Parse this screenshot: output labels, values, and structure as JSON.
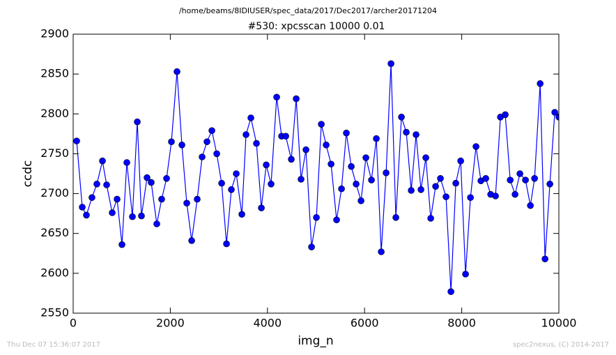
{
  "chart_data": {
    "type": "line",
    "suptitle": "/home/beams/8IDIUSER/spec_data/2017/Dec2017/archer20171204",
    "title": "#530: xpcsscan 10000 0.01",
    "x_label": "img_n",
    "y_label": "ccdc",
    "footer_left": "Thu Dec 07 15:36:07 2017",
    "footer_right": "spec2nexus, (C) 2014-2017",
    "x": [
      72,
      187,
      273,
      387,
      488,
      603,
      689,
      804,
      904,
      1005,
      1105,
      1220,
      1320,
      1406,
      1521,
      1607,
      1722,
      1822,
      1923,
      2023,
      2138,
      2239,
      2339,
      2440,
      2554,
      2655,
      2755,
      2856,
      2956,
      3057,
      3157,
      3257,
      3358,
      3473,
      3559,
      3659,
      3774,
      3875,
      3975,
      4075,
      4190,
      4291,
      4377,
      4491,
      4592,
      4692,
      4793,
      4908,
      5008,
      5109,
      5209,
      5310,
      5424,
      5525,
      5625,
      5726,
      5826,
      5927,
      6027,
      6142,
      6242,
      6343,
      6443,
      6544,
      6644,
      6759,
      6859,
      6960,
      7060,
      7161,
      7261,
      7362,
      7462,
      7562,
      7677,
      7778,
      7878,
      7979,
      8079,
      8180,
      8294,
      8395,
      8495,
      8596,
      8696,
      8797,
      8897,
      8998,
      9098,
      9198,
      9313,
      9414,
      9500,
      9615,
      9715,
      9815,
      9916,
      10000
    ],
    "series": [
      {
        "name": "ccdc",
        "color": "#0000ff",
        "values": [
          2766,
          2683,
          2673,
          2695,
          2712,
          2741,
          2711,
          2676,
          2693,
          2636,
          2739,
          2671,
          2790,
          2672,
          2720,
          2714,
          2662,
          2693,
          2719,
          2765,
          2853,
          2761,
          2688,
          2641,
          2693,
          2746,
          2765,
          2779,
          2750,
          2713,
          2637,
          2705,
          2725,
          2674,
          2774,
          2795,
          2763,
          2682,
          2736,
          2712,
          2821,
          2772,
          2772,
          2743,
          2819,
          2718,
          2755,
          2633,
          2670,
          2787,
          2761,
          2737,
          2667,
          2706,
          2776,
          2734,
          2712,
          2691,
          2745,
          2717,
          2769,
          2627,
          2726,
          2863,
          2670,
          2796,
          2777,
          2704,
          2774,
          2705,
          2745,
          2669,
          2709,
          2719,
          2696,
          2577,
          2713,
          2741,
          2599,
          2695,
          2759,
          2716,
          2719,
          2699,
          2697,
          2796,
          2799,
          2717,
          2699,
          2725,
          2717,
          2685,
          2719,
          2838,
          2618,
          2712,
          2802,
          2796
        ]
      }
    ],
    "xlim": [
      0,
      10000
    ],
    "ylim": [
      2550,
      2900
    ],
    "xticks": [
      0,
      2000,
      4000,
      6000,
      8000,
      10000
    ],
    "yticks": [
      2550,
      2600,
      2650,
      2700,
      2750,
      2800,
      2850,
      2900
    ]
  }
}
